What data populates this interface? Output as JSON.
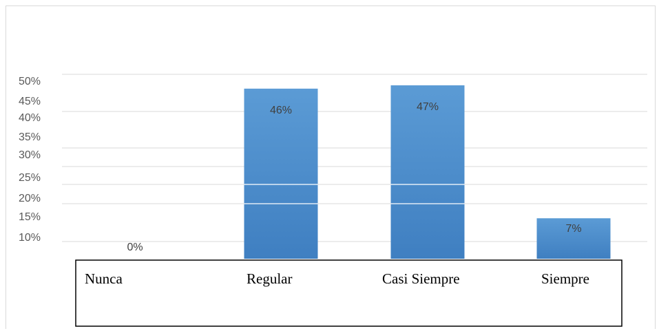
{
  "chart_data": {
    "type": "bar",
    "categories": [
      "Nunca",
      "Regular",
      "Casi Siempre",
      "Siempre"
    ],
    "values": [
      0,
      46,
      47,
      7
    ],
    "data_labels": [
      "0%",
      "46%",
      "47%",
      "7%"
    ],
    "y_tick_labels": [
      "50%",
      "45%",
      "40%",
      "35%",
      "30%",
      "25%",
      "20%",
      "15%",
      "10%"
    ],
    "title": "",
    "xlabel": "",
    "ylabel": "",
    "ylim": [
      0,
      50
    ],
    "grid": true,
    "legend": "none",
    "colors": {
      "bar_top": "#5b9bd5",
      "bar_bottom": "#3f7fc1",
      "grid": "#d9d9d9"
    }
  }
}
